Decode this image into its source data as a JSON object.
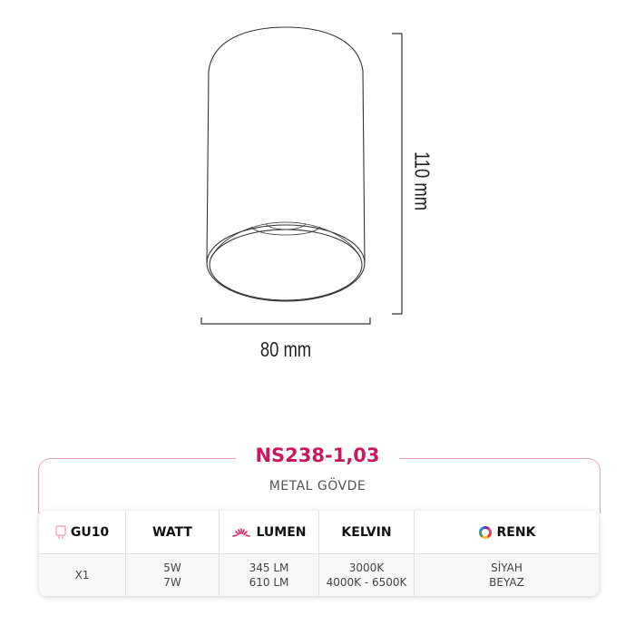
{
  "dimensions": {
    "width": "80 mm",
    "height": "110 mm"
  },
  "product": {
    "code": "NS238-1,03",
    "subtitle": "METAL GÖVDE"
  },
  "colors": {
    "accent": "#c8185f",
    "frame": "#e6a2c0",
    "icon_pink": "#f2a6c9"
  },
  "table": {
    "headers": [
      {
        "label": "GU10",
        "icon": "bulb-socket-icon"
      },
      {
        "label": "WATT"
      },
      {
        "label": "LUMEN",
        "icon": "light-rays-icon"
      },
      {
        "label": "KELVIN"
      },
      {
        "label": "RENK",
        "icon": "color-wheel-icon"
      }
    ],
    "rows": [
      [
        [
          "X1"
        ],
        [
          "5W",
          "7W"
        ],
        [
          "345 LM",
          "610 LM"
        ],
        [
          "3000K",
          "4000K - 6500K"
        ],
        [
          "SİYAH",
          "BEYAZ"
        ]
      ]
    ]
  }
}
